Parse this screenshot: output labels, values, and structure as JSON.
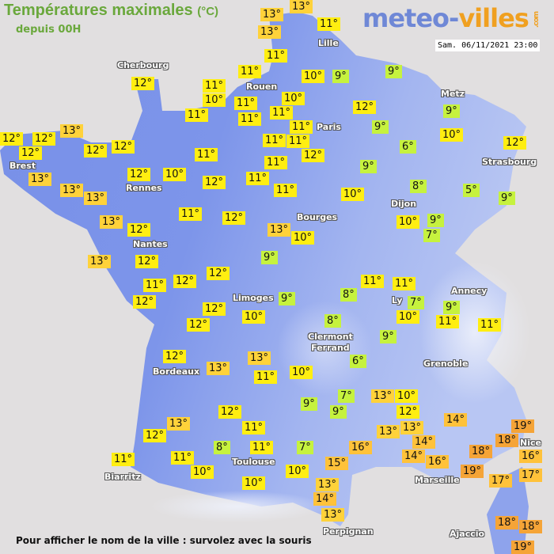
{
  "header": {
    "title": "Températures maximales",
    "unit": "(°C)",
    "subtitle": "depuis 00H"
  },
  "logo": {
    "part1": "meteo-",
    "part2": "villes",
    "part3": ".com"
  },
  "timestamp": "Sam. 06/11/2021 23:00",
  "footer": "Pour afficher le nom de la ville : survolez avec la souris",
  "colors": {
    "cold": "#c6f23e",
    "mild": "#ffee11",
    "warm13": "#ffd23a",
    "warm": "#ffc23a",
    "hot": "#f5a437",
    "land": "#7b93e8",
    "sea": "#e1dfe0"
  },
  "cities": [
    "Cherbourg",
    "Lille",
    "Rouen",
    "Paris",
    "Metz",
    "Strasbourg",
    "Brest",
    "Rennes",
    "Dijon",
    "Bourges",
    "Nantes",
    "Limoges",
    "Annecy",
    "Ly",
    "Clermont\nFerrand",
    "Grenoble",
    "Bordeaux",
    "Toulouse",
    "Biarritz",
    "Marseille",
    "Nice",
    "Perpignan",
    "Ajaccio"
  ],
  "temperatures": [
    13,
    13,
    13,
    11,
    11,
    11,
    10,
    9,
    9,
    12,
    11,
    10,
    11,
    11,
    11,
    10,
    11,
    12,
    9,
    11,
    9,
    10,
    11,
    11,
    12,
    6,
    12,
    13,
    12,
    12,
    12,
    12,
    12,
    11,
    11,
    9,
    13,
    12,
    10,
    12,
    11,
    8,
    5,
    9,
    13,
    13,
    11,
    10,
    11,
    12,
    13,
    12,
    13,
    10,
    10,
    9,
    7,
    13,
    12,
    9,
    12,
    11,
    12,
    11,
    11,
    12,
    12,
    9,
    8,
    7,
    9,
    10,
    11,
    11,
    12,
    10,
    8,
    9,
    12,
    13,
    13,
    6,
    11,
    10,
    7,
    13,
    10,
    9,
    9,
    12,
    12,
    14,
    19,
    13,
    11,
    13,
    13,
    18,
    12,
    16,
    14,
    18,
    16,
    8,
    11,
    7,
    14,
    16,
    11,
    11,
    15,
    19,
    17,
    17,
    10,
    10,
    10,
    13,
    14,
    13,
    18,
    18,
    19
  ]
}
